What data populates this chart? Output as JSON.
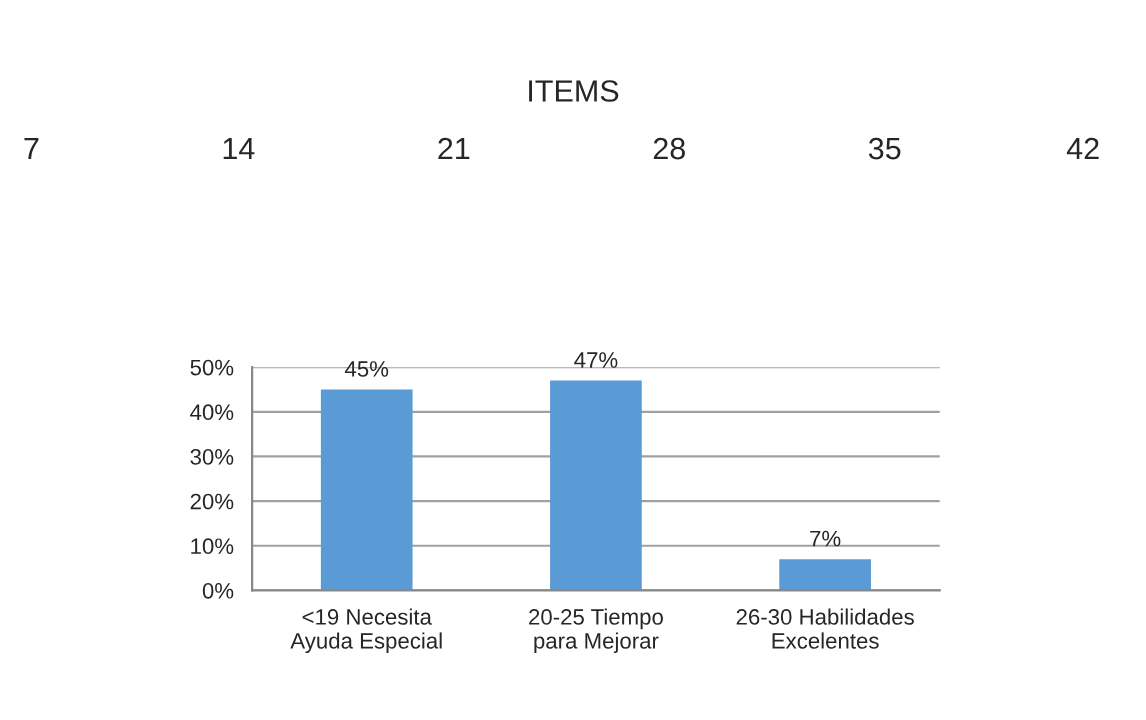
{
  "chart_data": {
    "type": "bar",
    "title": "ITEMS",
    "annotations": [
      "7",
      "14",
      "21",
      "28",
      "35",
      "42"
    ],
    "categories": [
      "<19 Necesita\nAyuda Especial",
      "20-25 Tiempo\npara Mejorar",
      "26-30 Habilidades\nExcelentes"
    ],
    "values": [
      45,
      47,
      7
    ],
    "value_labels": [
      "45%",
      "47%",
      "7%"
    ],
    "color": "#5b9bd5",
    "ylim": [
      0,
      50
    ],
    "yticks": [
      {
        "value": 0,
        "label": "0%"
      },
      {
        "value": 10,
        "label": "10%"
      },
      {
        "value": 20,
        "label": "20%"
      },
      {
        "value": 30,
        "label": "30%"
      },
      {
        "value": 40,
        "label": "40%"
      },
      {
        "value": 50,
        "label": "50%"
      }
    ],
    "grid": "y",
    "legend": false
  }
}
